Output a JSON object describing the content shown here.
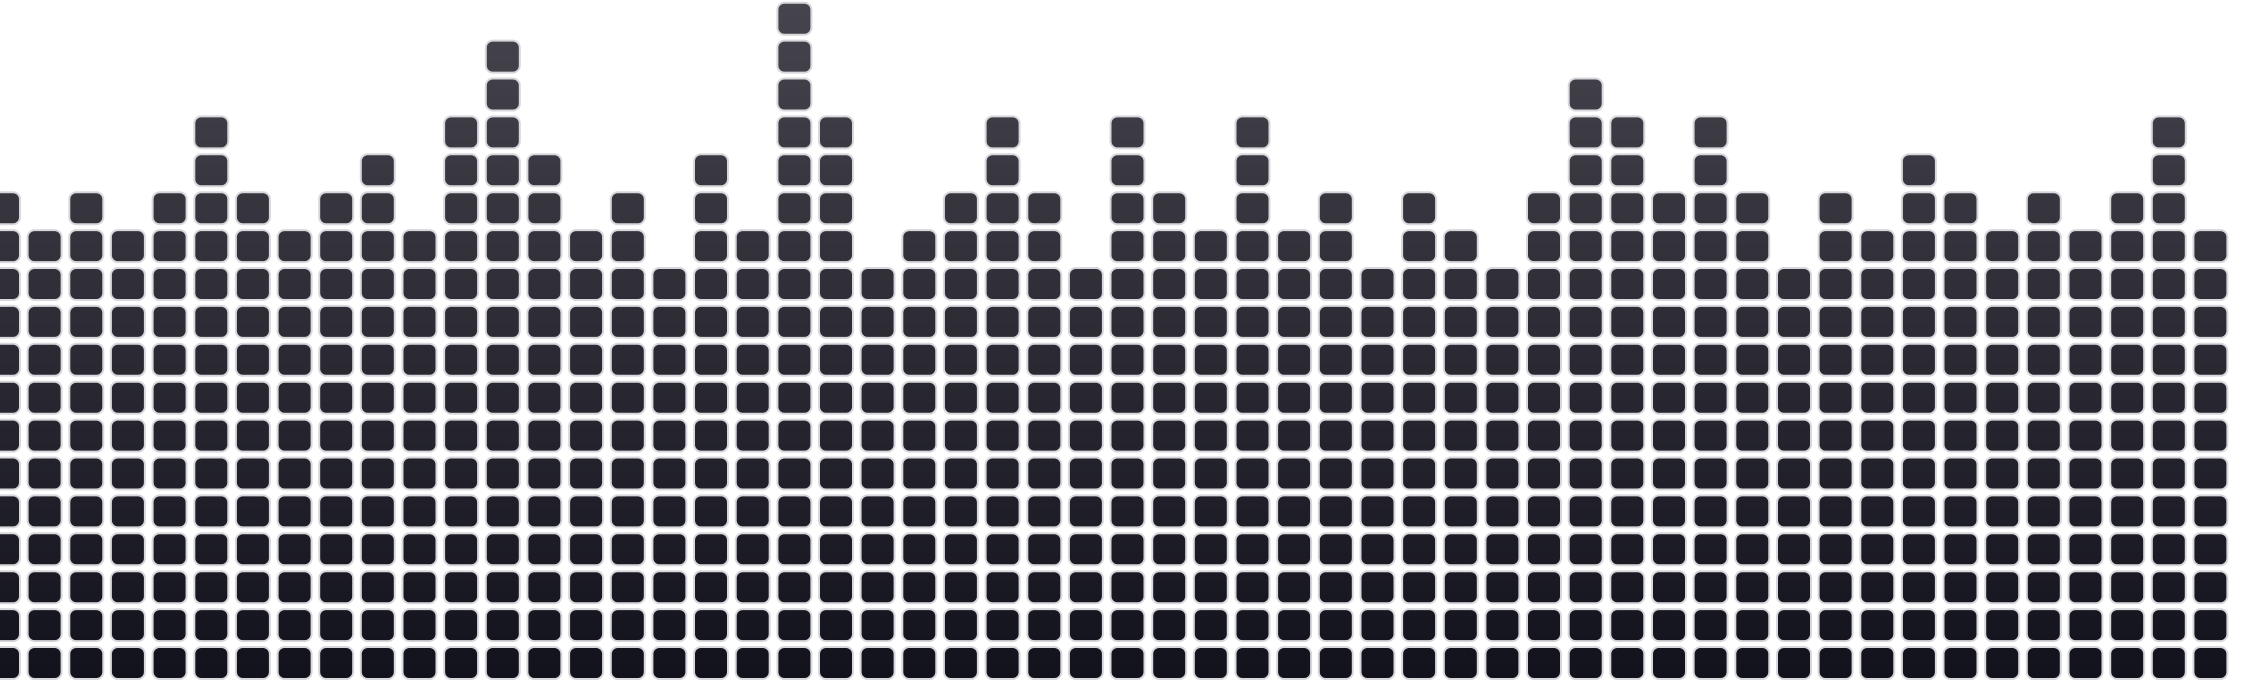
{
  "equalizer": {
    "colors": {
      "background": "#ffffff",
      "block_top": "#46444d",
      "block_bottom": "#12121c",
      "block_stroke": "#d8d8dc"
    },
    "column_levels": [
      13,
      12,
      13,
      12,
      13,
      15,
      13,
      12,
      13,
      14,
      12,
      15,
      17,
      14,
      12,
      13,
      11,
      14,
      12,
      18,
      15,
      11,
      12,
      13,
      15,
      13,
      11,
      15,
      13,
      12,
      15,
      12,
      13,
      11,
      13,
      12,
      11,
      13,
      16,
      15,
      13,
      15,
      13,
      11,
      13,
      12,
      14,
      13,
      12,
      13,
      12,
      13,
      15,
      12
    ]
  }
}
